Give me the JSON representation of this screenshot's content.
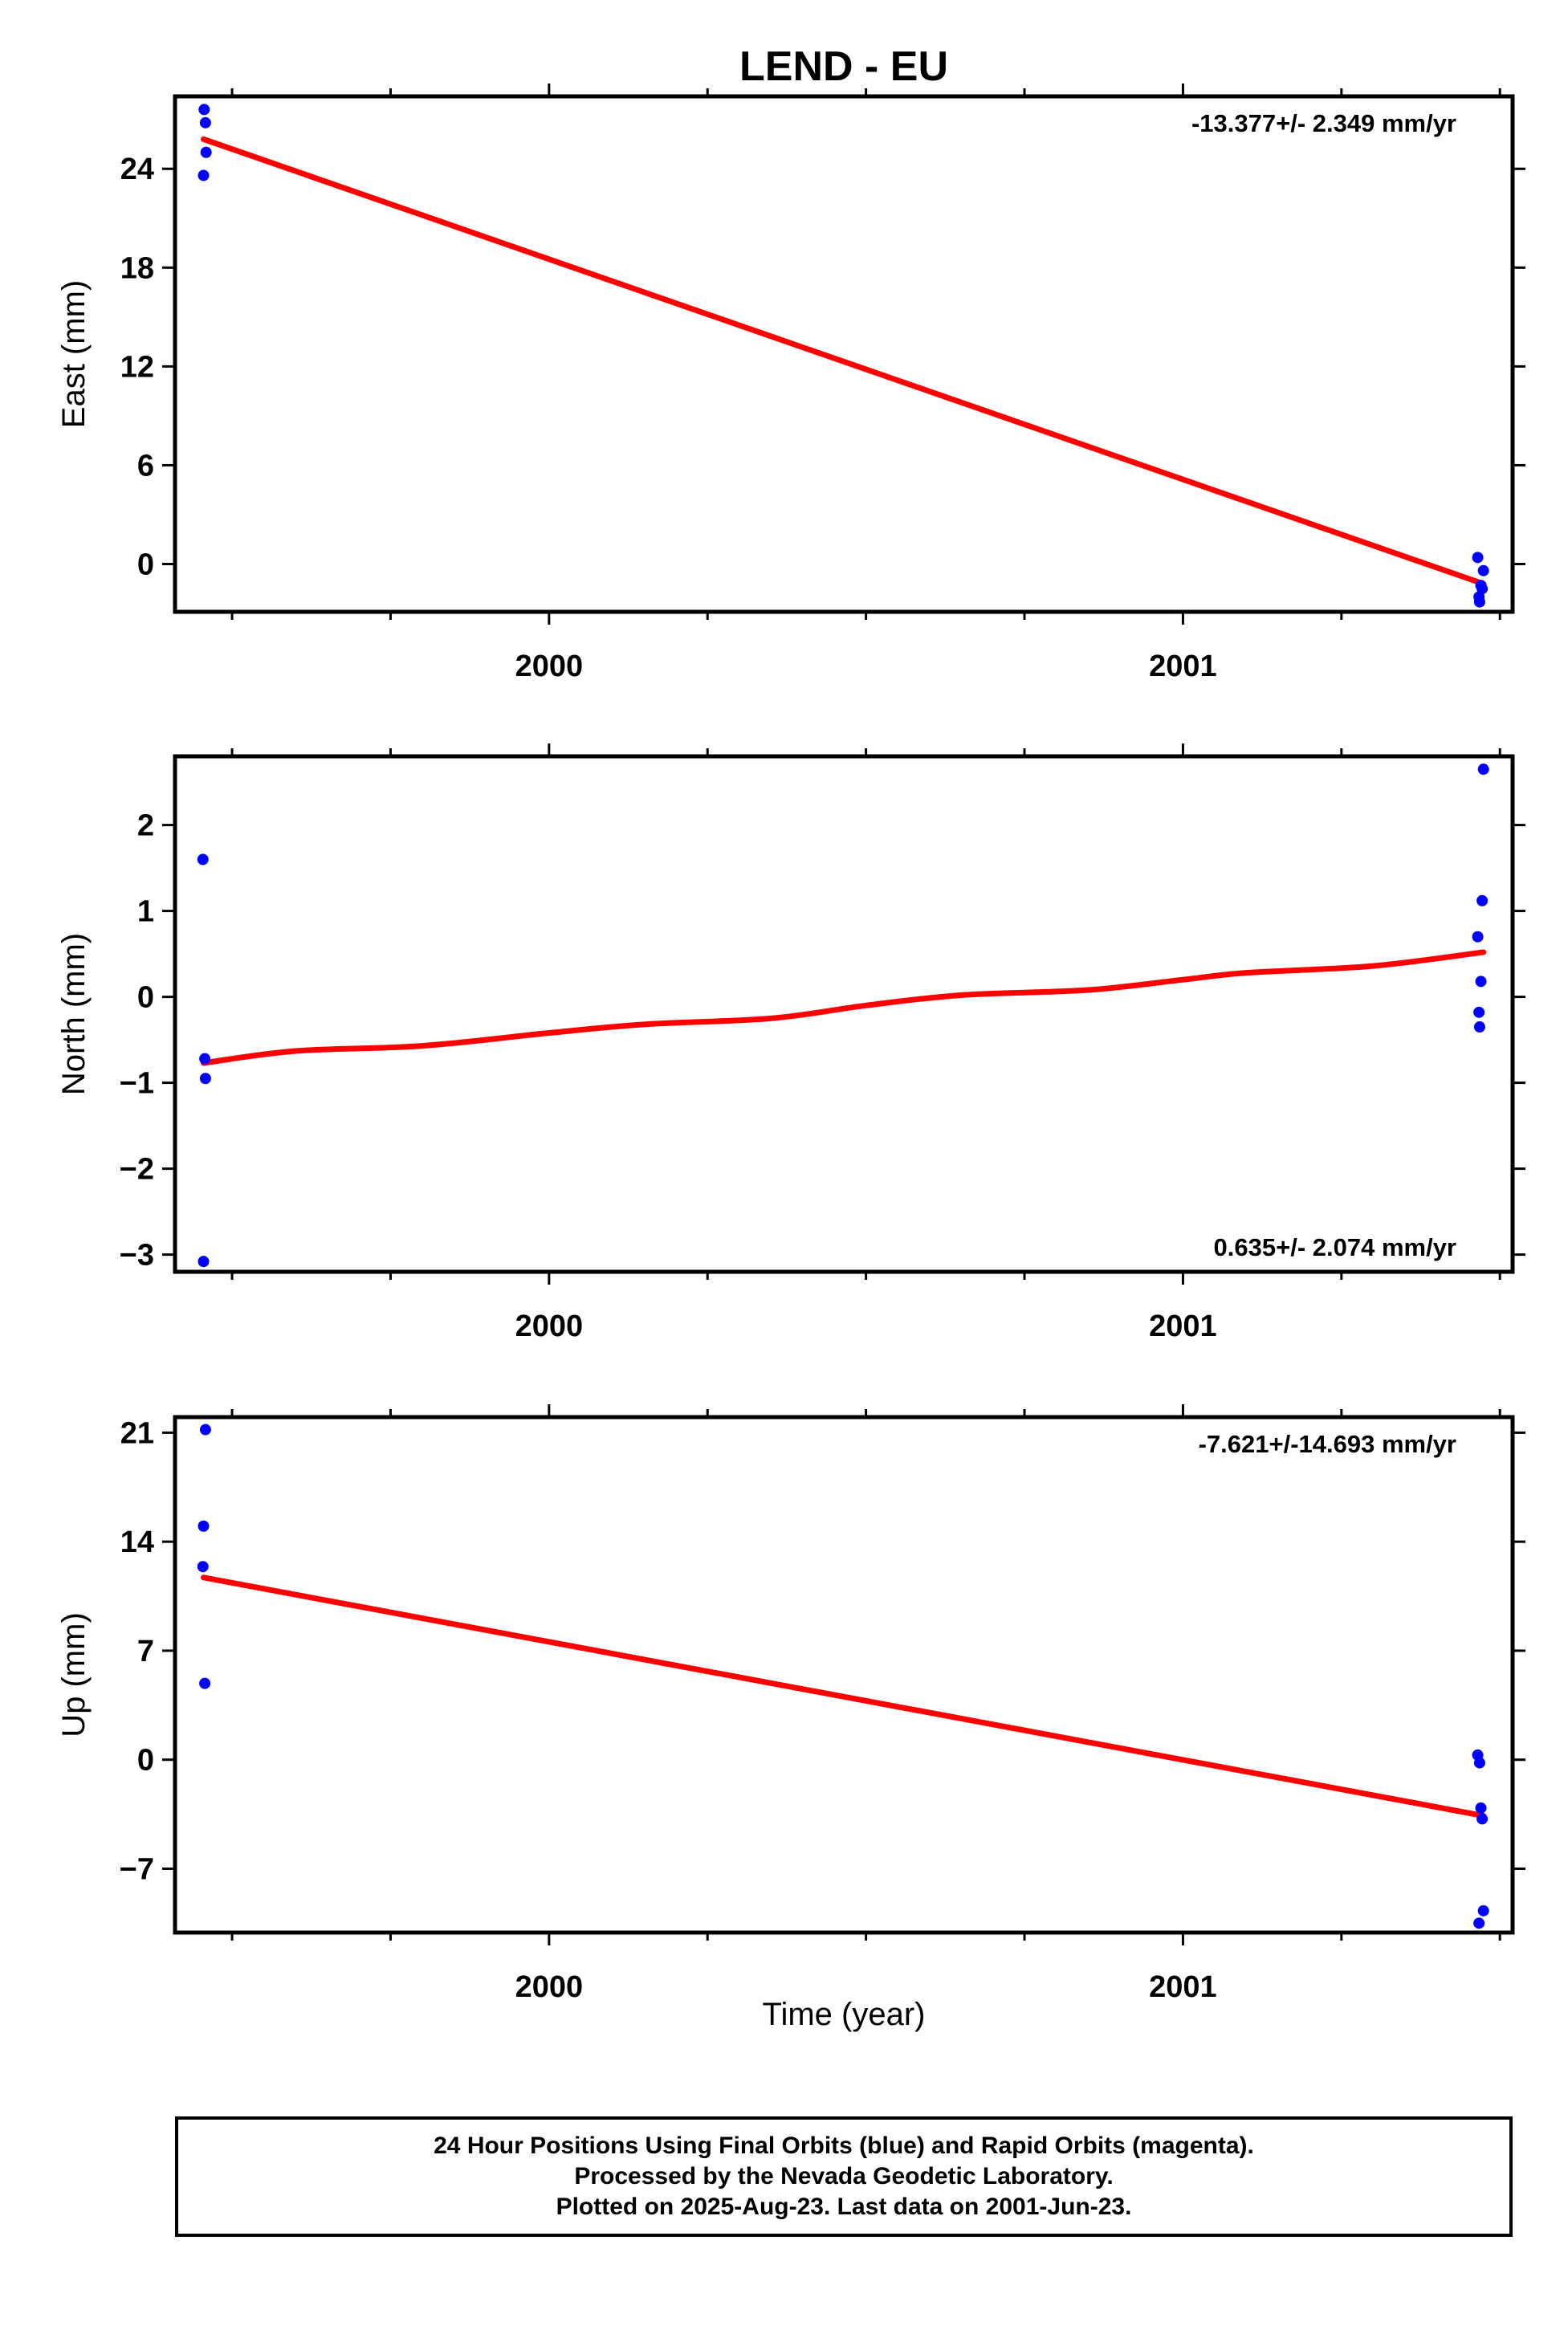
{
  "title": "LEND - EU",
  "xlabel": "Time (year)",
  "colors": {
    "final_orbits": "#0000ff",
    "fit": "#ff0000",
    "axes": "#000000"
  },
  "footer": {
    "line1": "24 Hour Positions Using Final Orbits (blue) and Rapid Orbits (magenta).",
    "line2": "Processed by the Nevada Geodetic Laboratory.",
    "line3": "Plotted on 2025-Aug-23. Last data on 2001-Jun-23."
  },
  "chart_data": [
    {
      "type": "scatter",
      "name": "east",
      "ylabel": "East (mm)",
      "rate": "-13.377+/- 2.349 mm/yr",
      "rate_pos": "top-right",
      "xlim": [
        1999.41,
        2001.52
      ],
      "ylim": [
        -2.9,
        28.4
      ],
      "yticks": [
        0,
        6,
        12,
        18,
        24
      ],
      "xticks": [
        2000,
        2001
      ],
      "x": [
        1999.455,
        1999.456,
        1999.458,
        1999.459,
        2001.465,
        2001.467,
        2001.468,
        2001.47,
        2001.472,
        2001.474
      ],
      "y": [
        23.6,
        27.6,
        26.8,
        25.0,
        0.4,
        -2.0,
        -2.3,
        -1.3,
        -1.5,
        -0.4
      ],
      "fit": {
        "kind": "line",
        "x": [
          1999.455,
          2001.474
        ],
        "y": [
          25.8,
          -1.2
        ]
      }
    },
    {
      "type": "scatter",
      "name": "north",
      "ylabel": "North (mm)",
      "rate": "0.635+/- 2.074 mm/yr",
      "rate_pos": "bottom-right",
      "xlim": [
        1999.41,
        2001.52
      ],
      "ylim": [
        -3.2,
        2.8
      ],
      "yticks": [
        -3,
        -2,
        -1,
        0,
        1,
        2
      ],
      "yticklabels": [
        "−3",
        "−2",
        "−1",
        "0",
        "1",
        "2"
      ],
      "xticks": [
        2000,
        2001
      ],
      "x": [
        1999.454,
        1999.455,
        1999.457,
        1999.458,
        2001.465,
        2001.467,
        2001.468,
        2001.47,
        2001.472,
        2001.474
      ],
      "y": [
        1.6,
        -3.08,
        -0.72,
        -0.95,
        0.7,
        -0.18,
        -0.35,
        0.18,
        1.12,
        2.65
      ],
      "fit": {
        "kind": "curve",
        "x": [
          1999.455,
          1999.6,
          1999.8,
          2000.0,
          2000.15,
          2000.35,
          2000.5,
          2000.65,
          2000.85,
          2001.0,
          2001.1,
          2001.3,
          2001.474
        ],
        "y": [
          -0.77,
          -0.63,
          -0.57,
          -0.42,
          -0.32,
          -0.25,
          -0.1,
          0.02,
          0.08,
          0.2,
          0.28,
          0.36,
          0.52
        ]
      }
    },
    {
      "type": "scatter",
      "name": "up",
      "ylabel": "Up (mm)",
      "rate": "-7.621+/-14.693 mm/yr",
      "rate_pos": "top-right",
      "xlim": [
        1999.41,
        2001.52
      ],
      "ylim": [
        -11.1,
        22.0
      ],
      "yticks": [
        -7,
        0,
        7,
        14,
        21
      ],
      "yticklabels": [
        "−7",
        "0",
        "7",
        "14",
        "21"
      ],
      "xticks": [
        2000,
        2001
      ],
      "x": [
        1999.454,
        1999.455,
        1999.457,
        1999.458,
        2001.465,
        2001.467,
        2001.468,
        2001.47,
        2001.472,
        2001.474
      ],
      "y": [
        12.4,
        15.0,
        4.9,
        21.2,
        0.3,
        -10.5,
        -0.2,
        -3.1,
        -3.8,
        -9.7
      ],
      "fit": {
        "kind": "line",
        "x": [
          1999.455,
          2001.474
        ],
        "y": [
          11.7,
          -3.6
        ]
      }
    }
  ]
}
